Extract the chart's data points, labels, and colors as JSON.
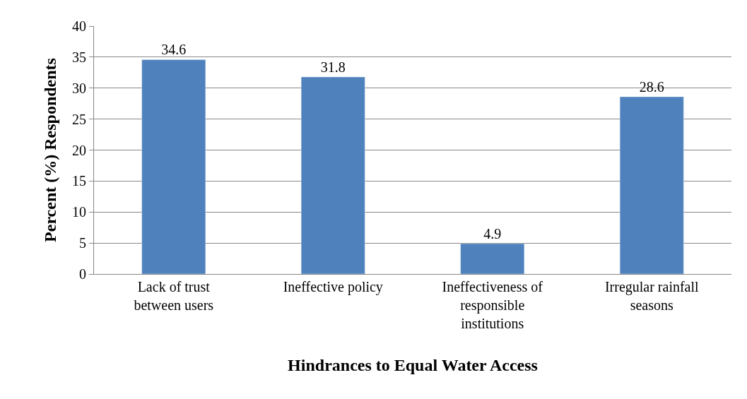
{
  "chart_data": {
    "type": "bar",
    "xlabel": "Hindrances to Equal Water Access",
    "ylabel": "Percent (%) Respondents",
    "categories": [
      "Lack of trust\nbetween users",
      "Ineffective policy",
      "Ineffectiveness of\nresponsible\ninstitutions",
      "Irregular rainfall\nseasons"
    ],
    "values": [
      34.6,
      31.8,
      4.9,
      28.6
    ],
    "color": "#4f81bd",
    "ylim": [
      0,
      40
    ],
    "yticks": [
      0,
      5,
      10,
      15,
      20,
      25,
      30,
      35,
      40
    ],
    "grid": "y",
    "data_labels": true,
    "legend": false
  }
}
